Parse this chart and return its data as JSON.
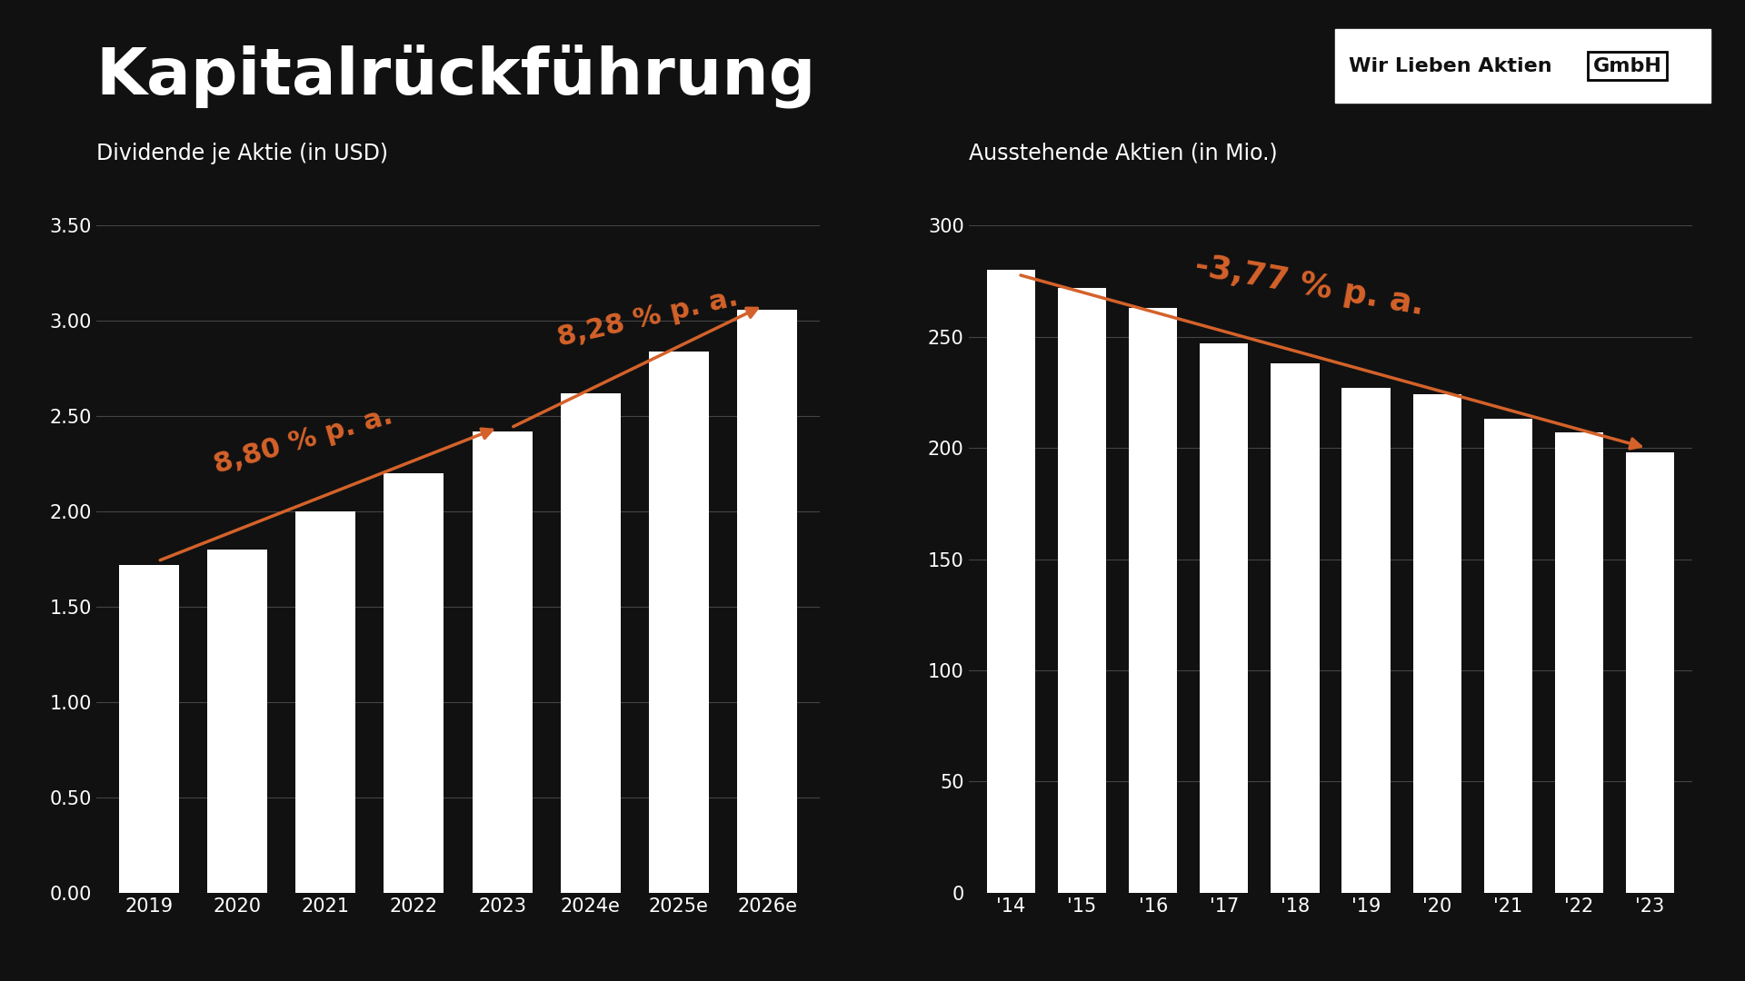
{
  "title": "Kapitalrückführung",
  "bg_color": "#111111",
  "bar_color": "#ffffff",
  "orange_color": "#d4622a",
  "left_subtitle": "Dividende je Aktie (in USD)",
  "right_subtitle": "Ausstehende Aktien (in Mio.)",
  "left_categories": [
    "2019",
    "2020",
    "2021",
    "2022",
    "2023",
    "2024e",
    "2025e",
    "2026e"
  ],
  "left_values": [
    1.72,
    1.8,
    2.0,
    2.2,
    2.42,
    2.62,
    2.84,
    3.06
  ],
  "left_ylim": [
    0,
    3.5
  ],
  "left_yticks": [
    0.0,
    0.5,
    1.0,
    1.5,
    2.0,
    2.5,
    3.0,
    3.5
  ],
  "right_categories": [
    "'14",
    "'15",
    "'16",
    "'17",
    "'18",
    "'19",
    "'20",
    "'21",
    "'22",
    "'23"
  ],
  "right_values": [
    280,
    272,
    263,
    247,
    238,
    227,
    224,
    213,
    207,
    198
  ],
  "right_ylim": [
    0,
    300
  ],
  "right_yticks": [
    0,
    50,
    100,
    150,
    200,
    250,
    300
  ],
  "left_arrow_label": "8,80 % p. a.",
  "right_arrow_label": "-3,77 % p. a.",
  "left_arrow_second_label": "8,28 % p. a.",
  "logo_text_main": "Wir Lieben Aktien",
  "logo_text_box": "GmbH",
  "text_color": "#ffffff",
  "grid_color": "#444444"
}
